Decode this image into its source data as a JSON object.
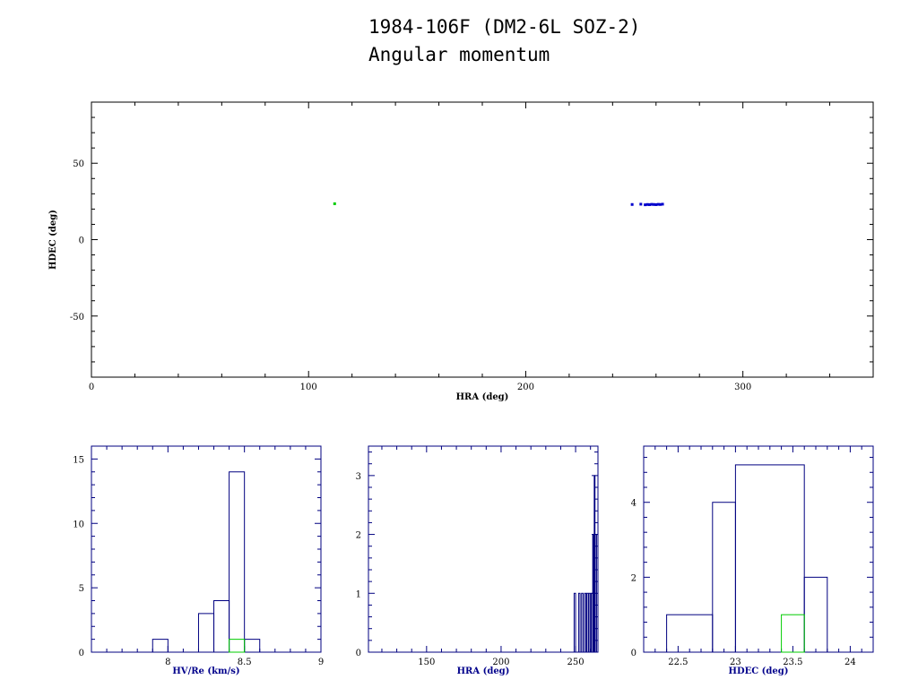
{
  "title": "1984-106F (DM2-6L SOZ-2)",
  "subtitle": "Angular momentum",
  "colors": {
    "primary": "#0000cc",
    "secondary": "#00cc00",
    "hist_frame": "#000080",
    "axes": "#000000"
  },
  "chart_data": [
    {
      "type": "scatter",
      "xlabel": "HRA (deg)",
      "ylabel": "HDEC (deg)",
      "xlim": [
        0,
        360
      ],
      "ylim": [
        -90,
        90
      ],
      "xticks": [
        0,
        100,
        200,
        300
      ],
      "yticks": [
        -50,
        0,
        50
      ],
      "series": [
        {
          "color": "#0000cc",
          "points": [
            [
              249,
              23
            ],
            [
              253,
              23.2
            ],
            [
              255,
              22.8
            ],
            [
              256,
              23
            ],
            [
              257,
              22.9
            ],
            [
              258,
              23.1
            ],
            [
              259,
              23
            ],
            [
              260,
              22.9
            ],
            [
              261,
              23.1
            ],
            [
              262,
              23
            ],
            [
              263,
              23.2
            ]
          ]
        },
        {
          "color": "#00cc00",
          "points": [
            [
              112,
              23.5
            ]
          ]
        }
      ]
    },
    {
      "type": "histogram",
      "xlabel": "HV/Re (km/s)",
      "ylabel": "",
      "xlim": [
        7.5,
        9
      ],
      "ylim": [
        0,
        16
      ],
      "xticks": [
        8,
        8.5,
        9
      ],
      "yticks": [
        0,
        5,
        10,
        15
      ],
      "series": [
        {
          "color": "#000080",
          "bins": [
            [
              7.9,
              8.0,
              1
            ],
            [
              8.2,
              8.3,
              3
            ],
            [
              8.3,
              8.4,
              4
            ],
            [
              8.4,
              8.5,
              14
            ],
            [
              8.5,
              8.6,
              1
            ]
          ]
        },
        {
          "color": "#00cc00",
          "bins": [
            [
              8.4,
              8.5,
              1
            ]
          ]
        }
      ]
    },
    {
      "type": "histogram",
      "xlabel": "HRA (deg)",
      "ylabel": "",
      "xlim": [
        111,
        265
      ],
      "ylim": [
        0,
        3.5
      ],
      "xticks": [
        150,
        200,
        250
      ],
      "yticks": [
        0,
        1,
        2,
        3
      ],
      "series": [
        {
          "color": "#000080",
          "bins": [
            [
              249,
              250,
              1
            ],
            [
              252,
              253,
              1
            ],
            [
              254,
              255,
              1
            ],
            [
              256,
              257,
              1
            ],
            [
              257.5,
              258.5,
              1
            ],
            [
              259,
              260,
              1
            ],
            [
              260.5,
              261.5,
              1
            ],
            [
              261.5,
              262,
              2
            ],
            [
              262,
              262.5,
              1
            ],
            [
              262.5,
              263,
              3
            ],
            [
              263,
              264,
              2
            ],
            [
              264,
              265,
              2
            ]
          ]
        },
        {
          "color": "#00cc00",
          "bins": []
        }
      ]
    },
    {
      "type": "histogram",
      "xlabel": "HDEC (deg)",
      "ylabel": "",
      "xlim": [
        22.2,
        24.2
      ],
      "ylim": [
        0,
        5.5
      ],
      "xticks": [
        22.5,
        23,
        23.5,
        24
      ],
      "yticks": [
        0,
        2,
        4
      ],
      "series": [
        {
          "color": "#000080",
          "bins": [
            [
              22.4,
              22.8,
              1
            ],
            [
              22.8,
              23.0,
              4
            ],
            [
              23.0,
              23.6,
              5
            ],
            [
              23.6,
              23.8,
              2
            ]
          ]
        },
        {
          "color": "#00cc00",
          "bins": [
            [
              23.4,
              23.6,
              1
            ]
          ]
        }
      ]
    }
  ]
}
